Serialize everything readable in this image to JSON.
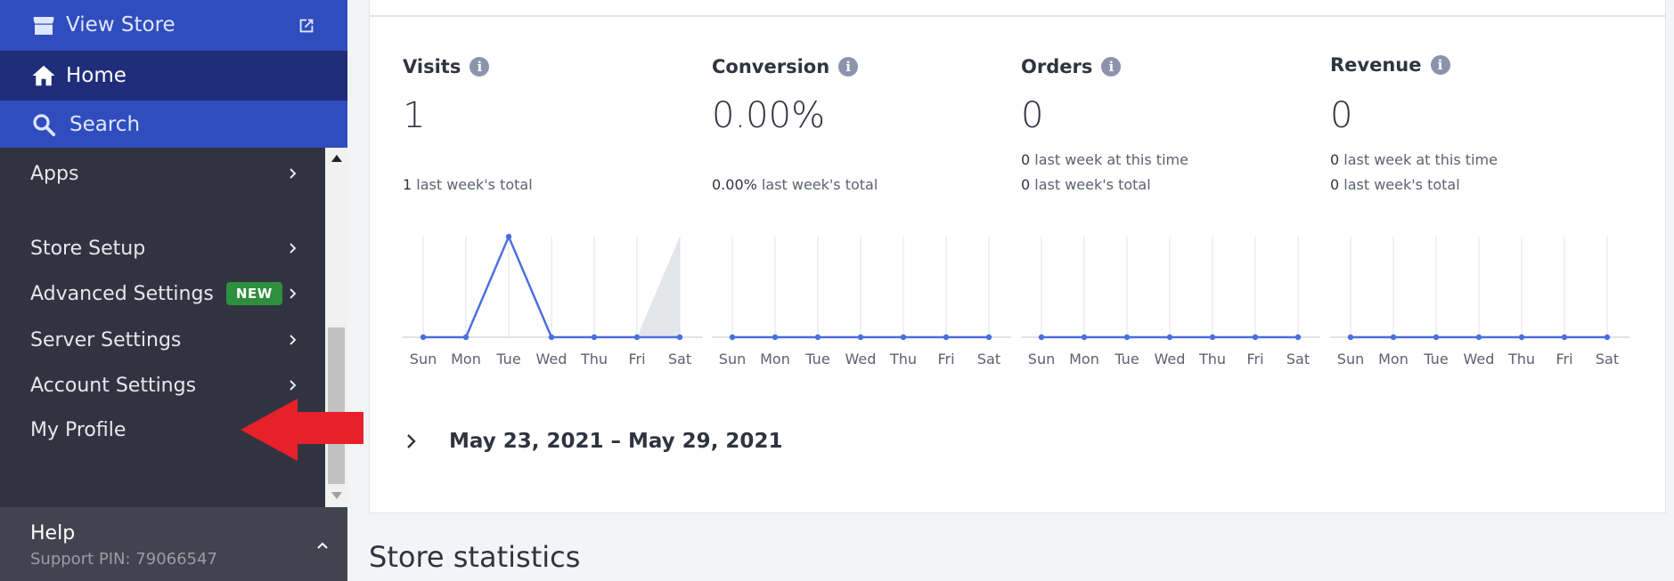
{
  "sidebar": {
    "view_store": "View Store",
    "home": "Home",
    "search": "Search",
    "items": [
      {
        "label": "Apps"
      },
      {
        "label": "Store Setup"
      },
      {
        "label": "Advanced Settings",
        "badge": "NEW"
      },
      {
        "label": "Server Settings"
      },
      {
        "label": "Account Settings"
      },
      {
        "label": "My Profile"
      }
    ],
    "help": {
      "title": "Help",
      "pin": "Support PIN: 79066547"
    }
  },
  "metrics": [
    {
      "title": "Visits",
      "value": "1",
      "lines": [
        {
          "num": "1",
          "text": " last week's total"
        }
      ]
    },
    {
      "title": "Conversion",
      "value": "0.00%",
      "lines": [
        {
          "num": "0.00%",
          "text": " last week's total"
        }
      ]
    },
    {
      "title": "Orders",
      "value": "0",
      "lines": [
        {
          "num": "0",
          "text": " last week at this time"
        },
        {
          "num": "0",
          "text": " last week's total"
        }
      ]
    },
    {
      "title": "Revenue",
      "value": "0",
      "lines": [
        {
          "num": "0",
          "text": " last week at this time"
        },
        {
          "num": "0",
          "text": " last week's total"
        }
      ]
    }
  ],
  "chart_data": [
    {
      "type": "line",
      "categories": [
        "Sun",
        "Mon",
        "Tue",
        "Wed",
        "Thu",
        "Fri",
        "Sat"
      ],
      "series": [
        {
          "values": [
            0,
            0,
            1,
            0,
            0,
            0,
            0
          ]
        }
      ],
      "ylim": [
        0,
        1
      ],
      "grid": true
    },
    {
      "type": "line",
      "categories": [
        "Sun",
        "Mon",
        "Tue",
        "Wed",
        "Thu",
        "Fri",
        "Sat"
      ],
      "series": [
        {
          "values": [
            0,
            0,
            0,
            0,
            0,
            0,
            0
          ]
        }
      ],
      "ylim": [
        0,
        1
      ],
      "grid": true
    },
    {
      "type": "line",
      "categories": [
        "Sun",
        "Mon",
        "Tue",
        "Wed",
        "Thu",
        "Fri",
        "Sat"
      ],
      "series": [
        {
          "values": [
            0,
            0,
            0,
            0,
            0,
            0,
            0
          ]
        }
      ],
      "ylim": [
        0,
        1
      ],
      "grid": true
    },
    {
      "type": "line",
      "categories": [
        "Sun",
        "Mon",
        "Tue",
        "Wed",
        "Thu",
        "Fri",
        "Sat"
      ],
      "series": [
        {
          "values": [
            0,
            0,
            0,
            0,
            0,
            0,
            0
          ]
        }
      ],
      "ylim": [
        0,
        1
      ],
      "grid": true
    }
  ],
  "date_range": "May 23, 2021 – May 29, 2021",
  "section_title": "Store statistics",
  "colors": {
    "sidebar_bg": "#313440",
    "home_bg": "#1f2d7a",
    "link_bg": "#2f4dbd",
    "line": "#4a6ee0",
    "badge": "#2e8f3e",
    "arrow": "#e8202a"
  }
}
